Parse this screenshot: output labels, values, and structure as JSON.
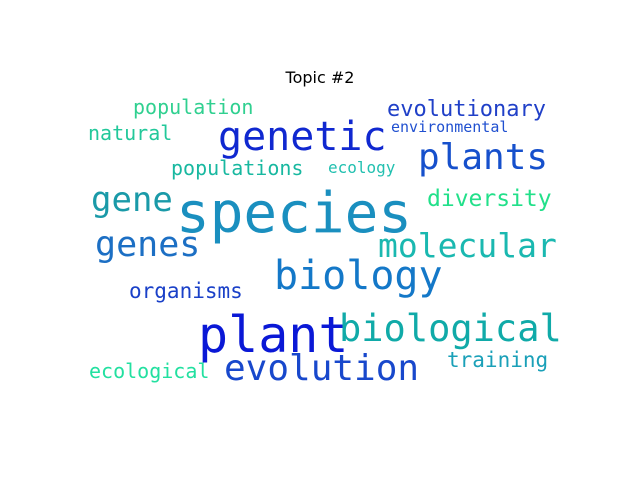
{
  "title": "Topic #2",
  "words": [
    {
      "text": "species",
      "color": "#1a8fbf"
    },
    {
      "text": "plant",
      "color": "#0a18d6"
    },
    {
      "text": "biology",
      "color": "#1478c8"
    },
    {
      "text": "genetic",
      "color": "#1028d0"
    },
    {
      "text": "plants",
      "color": "#1650cc"
    },
    {
      "text": "molecular",
      "color": "#1ab8b0"
    },
    {
      "text": "biological",
      "color": "#10aaa8"
    },
    {
      "text": "evolution",
      "color": "#1848cc"
    },
    {
      "text": "genes",
      "color": "#1c6fc4"
    },
    {
      "text": "gene",
      "color": "#1a9aa8"
    },
    {
      "text": "evolutionary",
      "color": "#2040c8"
    },
    {
      "text": "diversity",
      "color": "#22e08a"
    },
    {
      "text": "population",
      "color": "#30d090"
    },
    {
      "text": "natural",
      "color": "#22c89a"
    },
    {
      "text": "environmental",
      "color": "#2050d0"
    },
    {
      "text": "populations",
      "color": "#18b8a0"
    },
    {
      "text": "ecology",
      "color": "#22c0b0"
    },
    {
      "text": "organisms",
      "color": "#1a40c8"
    },
    {
      "text": "training",
      "color": "#1aa0b8"
    },
    {
      "text": "ecological",
      "color": "#22e0a0"
    }
  ]
}
